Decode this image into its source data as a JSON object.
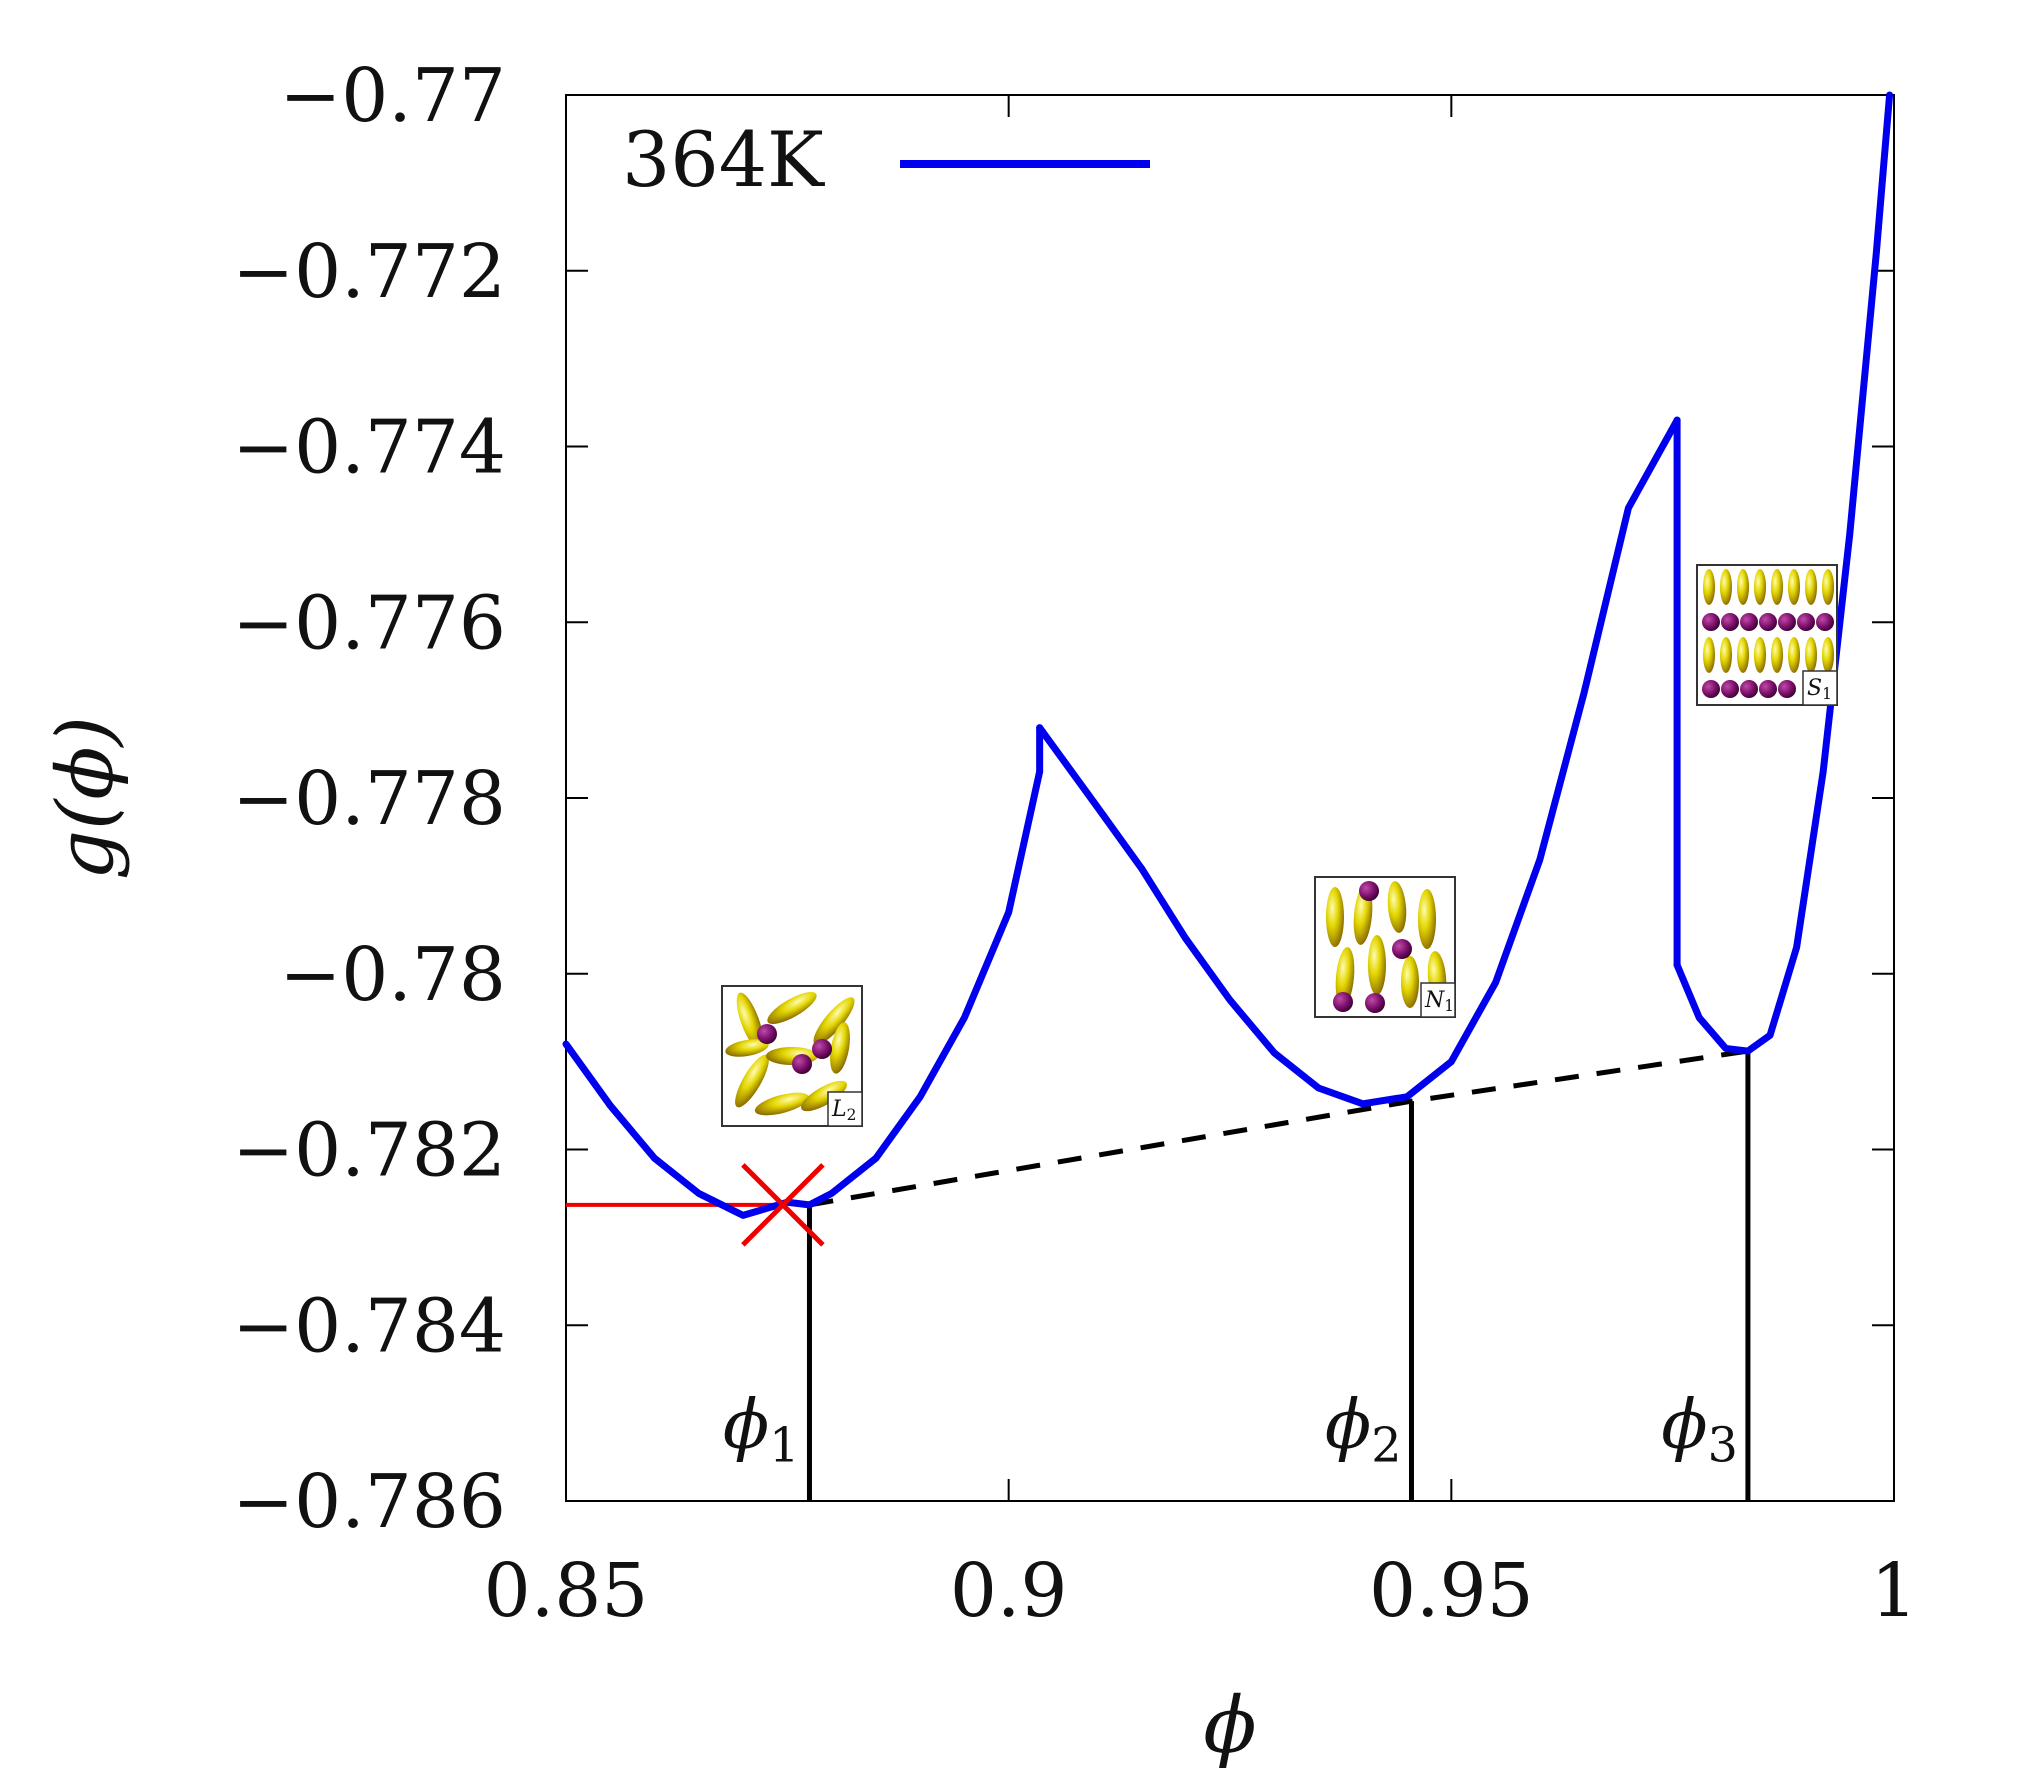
{
  "chart_data": {
    "type": "line",
    "xlabel": "ϕ",
    "ylabel": "g(ϕ)",
    "xlim": [
      0.85,
      1.0
    ],
    "ylim": [
      -0.786,
      -0.77
    ],
    "x_ticks": [
      "0.85",
      "0.9",
      "0.95",
      "1"
    ],
    "x_tick_values": [
      0.85,
      0.9,
      0.95,
      1.0
    ],
    "y_ticks": [
      "−0.77",
      "−0.772",
      "−0.774",
      "−0.776",
      "−0.778",
      "−0.78",
      "−0.782",
      "−0.784",
      "−0.786"
    ],
    "y_tick_values": [
      -0.77,
      -0.772,
      -0.774,
      -0.776,
      -0.778,
      -0.78,
      -0.782,
      -0.784,
      -0.786
    ],
    "grid": false,
    "legend": {
      "position": "top-left",
      "entries": [
        {
          "label": "364K",
          "color": "#0000ee"
        }
      ]
    },
    "series": [
      {
        "name": "364K",
        "color": "#0000ee",
        "segments": [
          {
            "x": [
              0.85,
              0.855,
              0.86,
              0.865,
              0.87,
              0.875,
              0.8775,
              0.88,
              0.885,
              0.89,
              0.895,
              0.9,
              0.9035
            ],
            "y": [
              -0.7808,
              -0.7815,
              -0.7821,
              -0.7825,
              -0.78275,
              -0.7826,
              -0.78263,
              -0.7825,
              -0.7821,
              -0.7814,
              -0.7805,
              -0.7793,
              -0.7777
            ]
          },
          {
            "x": [
              0.9035,
              0.9035
            ],
            "y": [
              -0.7777,
              -0.7772
            ]
          },
          {
            "x": [
              0.9035,
              0.91,
              0.915,
              0.92,
              0.925,
              0.93,
              0.935,
              0.94,
              0.945,
              0.95,
              0.955,
              0.96,
              0.965,
              0.97,
              0.9755
            ],
            "y": [
              -0.7772,
              -0.7781,
              -0.7788,
              -0.7796,
              -0.7803,
              -0.7809,
              -0.7813,
              -0.78148,
              -0.7814,
              -0.781,
              -0.7801,
              -0.7787,
              -0.7768,
              -0.7747,
              -0.7737
            ]
          },
          {
            "x": [
              0.9755,
              0.9755
            ],
            "y": [
              -0.7737,
              -0.7799
            ]
          },
          {
            "x": [
              0.9755,
              0.978,
              0.981,
              0.9835,
              0.986,
              0.989,
              0.992,
              0.995,
              0.998,
              0.9995
            ],
            "y": [
              -0.7799,
              -0.7805,
              -0.78085,
              -0.78088,
              -0.7807,
              -0.7797,
              -0.7777,
              -0.775,
              -0.7718,
              -0.77
            ]
          }
        ]
      }
    ],
    "common_tangent": {
      "style": "dashed",
      "color": "#000000",
      "x": [
        0.8775,
        0.9455,
        0.9835
      ],
      "y": [
        -0.78263,
        -0.78145,
        -0.78088
      ]
    },
    "marker": {
      "shape": "cross",
      "color": "#ee0000",
      "x": 0.8745,
      "y": -0.78263
    },
    "horizontal_line": {
      "color": "#ee0000",
      "x": [
        0.85,
        0.8745
      ],
      "y": -0.78263
    },
    "vertical_lines": [
      {
        "label": "ϕ",
        "sub": "1",
        "x": 0.8775,
        "y_top": -0.78263
      },
      {
        "label": "ϕ",
        "sub": "2",
        "x": 0.9455,
        "y_top": -0.78145
      },
      {
        "label": "ϕ",
        "sub": "3",
        "x": 0.9835,
        "y_top": -0.78088
      }
    ],
    "insets": [
      {
        "label": "L",
        "sub": "2",
        "phase": "isotropic"
      },
      {
        "label": "N",
        "sub": "1",
        "phase": "nematic"
      },
      {
        "label": "S",
        "sub": "1",
        "phase": "smectic"
      }
    ],
    "colors": {
      "ellipsoid": "#d8d000",
      "sphere": "#7a0f6a",
      "curve": "#0000ee",
      "marker": "#ee0000"
    }
  }
}
